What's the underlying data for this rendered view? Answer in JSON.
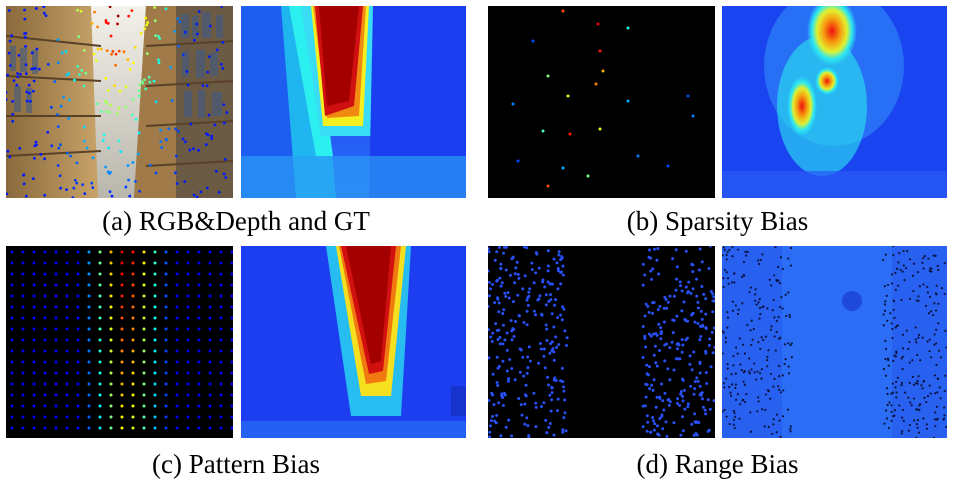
{
  "figure": {
    "panels": [
      {
        "id": "a",
        "caption": "(a) RGB&Depth and GT",
        "left_image": "rgb-with-sparse-depth-overlay",
        "right_image": "ground-truth-depth-map"
      },
      {
        "id": "b",
        "caption": "(b) Sparsity Bias",
        "left_image": "very-sparse-depth-points",
        "right_image": "predicted-depth-map-blurry"
      },
      {
        "id": "c",
        "caption": "(c) Pattern Bias",
        "left_image": "regular-grid-depth-points",
        "right_image": "predicted-depth-map"
      },
      {
        "id": "d",
        "caption": "(d) Range Bias",
        "left_image": "depth-points-missing-center-range",
        "right_image": "predicted-depth-map-flat"
      }
    ],
    "colormap": "jet"
  }
}
